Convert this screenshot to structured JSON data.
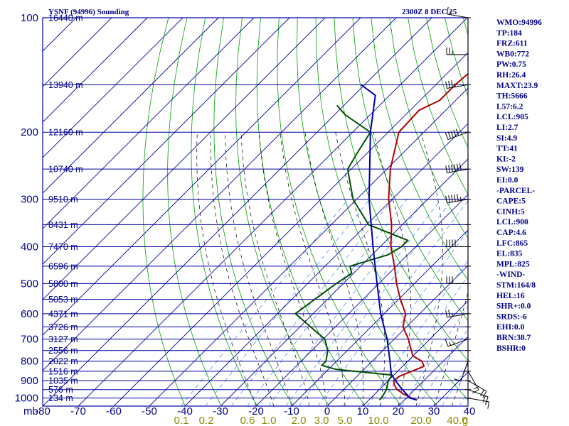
{
  "header": {
    "title": "YSNF (94996) Sounding",
    "time": "2300Z  8 DEC 25"
  },
  "colors": {
    "grid": "#0000a0",
    "dry_adiabat": "#00a000",
    "moist_adiabat": "#000000",
    "mixing_ratio": "#4080ff",
    "temperature": "#b00000",
    "dewpoint": "#005000",
    "parcel": "#0000b0",
    "text": "#00008b",
    "mixing_label": "#8b8b00"
  },
  "chart_data": {
    "type": "line",
    "skew_t": true,
    "pressure_levels": [
      100,
      200,
      300,
      400,
      500,
      600,
      700,
      800,
      900,
      1000
    ],
    "pressure_labels": [
      "100",
      "200",
      "300",
      "400",
      "500",
      "600",
      "700",
      "800",
      "900",
      "1000"
    ],
    "pressure_unit": "mb",
    "temperature_ticks": [
      -80,
      -70,
      -60,
      -50,
      -40,
      -30,
      -20,
      -10,
      0,
      10,
      20,
      30,
      40
    ],
    "temperature_labels": [
      "-80",
      "-70",
      "-60",
      "-50",
      "-40",
      "-30",
      "-20",
      "-10",
      "0",
      "10",
      "20",
      "30",
      "40"
    ],
    "mixing_ratio_labels": [
      "0.1",
      "0.2",
      "0.6",
      "1.0",
      "2.0",
      "3.0",
      "5.0",
      "10.0",
      "20.0",
      "40.0",
      "g"
    ],
    "height_labels": [
      {
        "text": "16440 m",
        "p": 100
      },
      {
        "text": "13940 m",
        "p": 150
      },
      {
        "text": "12160 m",
        "p": 200
      },
      {
        "text": "10740 m",
        "p": 250
      },
      {
        "text": "9510 m",
        "p": 300
      },
      {
        "text": "8431 m",
        "p": 350
      },
      {
        "text": "7470 m",
        "p": 400
      },
      {
        "text": "6596 m",
        "p": 450
      },
      {
        "text": "5800 m",
        "p": 500
      },
      {
        "text": "5053 m",
        "p": 550
      },
      {
        "text": "4371 m",
        "p": 600
      },
      {
        "text": "3726 m",
        "p": 650
      },
      {
        "text": "3127 m",
        "p": 700
      },
      {
        "text": "2556 m",
        "p": 750
      },
      {
        "text": "2022 m",
        "p": 800
      },
      {
        "text": "1516 m",
        "p": 850
      },
      {
        "text": "1035 m",
        "p": 900
      },
      {
        "text": "576 m",
        "p": 950
      },
      {
        "text": "134 m",
        "p": 1000
      }
    ],
    "series": [
      {
        "key": "temperature",
        "points": [
          [
            1012,
            23.5
          ],
          [
            1000,
            21.5
          ],
          [
            975,
            18.0
          ],
          [
            950,
            15.0
          ],
          [
            925,
            13.0
          ],
          [
            900,
            11.5
          ],
          [
            875,
            12.0
          ],
          [
            850,
            14.0
          ],
          [
            825,
            16.0
          ],
          [
            800,
            14.0
          ],
          [
            775,
            10.0
          ],
          [
            750,
            8.0
          ],
          [
            700,
            4.0
          ],
          [
            650,
            -1.0
          ],
          [
            600,
            -4.0
          ],
          [
            550,
            -9.5
          ],
          [
            500,
            -15.0
          ],
          [
            450,
            -20.5
          ],
          [
            400,
            -27.0
          ],
          [
            350,
            -33.0
          ],
          [
            300,
            -41.0
          ],
          [
            250,
            -49.0
          ],
          [
            200,
            -57.0
          ],
          [
            175,
            -57.5
          ],
          [
            165,
            -54.5
          ],
          [
            150,
            -54.5
          ],
          [
            130,
            -53.5
          ],
          [
            115,
            -57.0
          ],
          [
            110,
            -60.5
          ],
          [
            100,
            -60.5
          ]
        ]
      },
      {
        "key": "dewpoint",
        "points": [
          [
            1012,
            13.0
          ],
          [
            1000,
            13.0
          ],
          [
            950,
            12.0
          ],
          [
            900,
            10.0
          ],
          [
            870,
            9.5
          ],
          [
            840,
            -8.0
          ],
          [
            820,
            -13.0
          ],
          [
            800,
            -13.0
          ],
          [
            750,
            -15.5
          ],
          [
            700,
            -19.5
          ],
          [
            650,
            -27.0
          ],
          [
            600,
            -35.0
          ],
          [
            500,
            -32.0
          ],
          [
            470,
            -30.5
          ],
          [
            450,
            -33.0
          ],
          [
            420,
            -25.5
          ],
          [
            400,
            -24.0
          ],
          [
            385,
            -24.0
          ],
          [
            350,
            -39.5
          ],
          [
            300,
            -51.0
          ],
          [
            250,
            -61.0
          ],
          [
            225,
            -63.0
          ],
          [
            200,
            -65.0
          ],
          [
            180,
            -77.0
          ],
          [
            170,
            -82.0
          ]
        ]
      },
      {
        "key": "parcel",
        "points": [
          [
            1012,
            23.5
          ],
          [
            1000,
            21.0
          ],
          [
            950,
            16.5
          ],
          [
            900,
            12.0
          ],
          [
            865,
            9.0
          ],
          [
            800,
            5.0
          ],
          [
            700,
            -2.0
          ],
          [
            600,
            -11.0
          ],
          [
            500,
            -20.5
          ],
          [
            400,
            -32.0
          ],
          [
            300,
            -46.5
          ],
          [
            200,
            -65.0
          ],
          [
            160,
            -74.0
          ],
          [
            150,
            -81.0
          ]
        ]
      }
    ],
    "wind_barbs": [
      {
        "p": 1000,
        "dir": 100,
        "spd": 15
      },
      {
        "p": 950,
        "dir": 110,
        "spd": 20
      },
      {
        "p": 900,
        "dir": 120,
        "spd": 20
      },
      {
        "p": 850,
        "dir": 150,
        "spd": 15
      },
      {
        "p": 800,
        "dir": 200,
        "spd": 10
      },
      {
        "p": 700,
        "dir": 250,
        "spd": 15
      },
      {
        "p": 600,
        "dir": 260,
        "spd": 25
      },
      {
        "p": 500,
        "dir": 270,
        "spd": 30
      },
      {
        "p": 400,
        "dir": 270,
        "spd": 40
      },
      {
        "p": 300,
        "dir": 260,
        "spd": 55
      },
      {
        "p": 250,
        "dir": 260,
        "spd": 60
      },
      {
        "p": 200,
        "dir": 250,
        "spd": 50
      },
      {
        "p": 150,
        "dir": 260,
        "spd": 35
      },
      {
        "p": 125,
        "dir": 270,
        "spd": 25
      },
      {
        "p": 100,
        "dir": 280,
        "spd": 15
      }
    ]
  },
  "indices": [
    "WMO:94996",
    "TP:184",
    "FRZ:611",
    "WB0:772",
    "PW:0.75",
    "RH:26.4",
    "MAXT:23.9",
    "TH:5666",
    "L57:6.2",
    "LCL:905",
    "LI:2.7",
    "SI:4.9",
    "TT:41",
    "KI:-2",
    "SW:139",
    "EI:0.0",
    "-PARCEL-",
    "CAPE:5",
    "CINH:5",
    "LCL:900",
    "CAP:4.6",
    "LFC:865",
    "EL:835",
    "MPL:825",
    "-WIND-",
    "STM:164/8",
    "HEL:16",
    "SHR+:0.0",
    "SRDS:-6",
    "EHI:0.0",
    "BRN:38.7",
    "BSHR:0"
  ]
}
